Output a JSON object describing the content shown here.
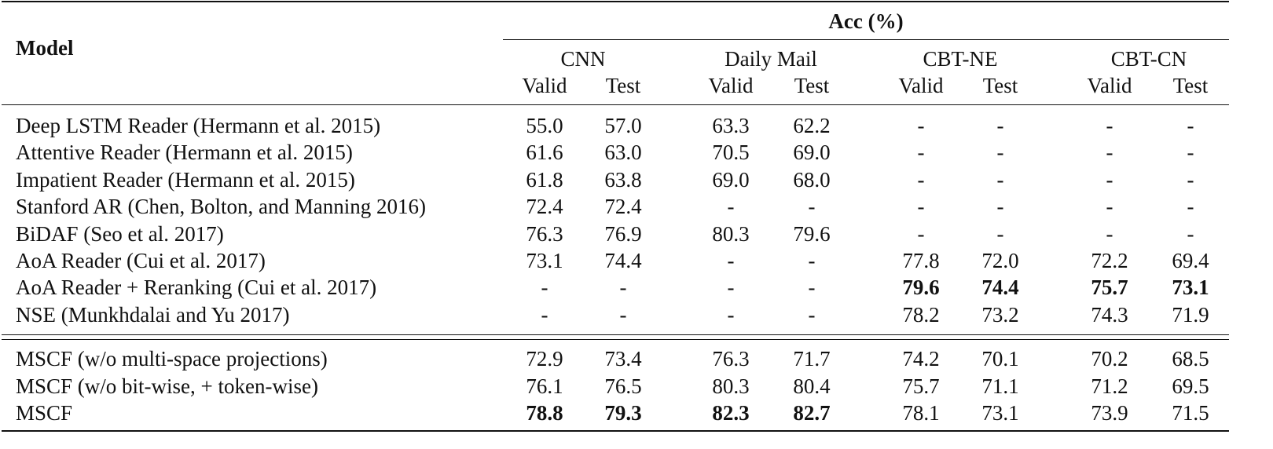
{
  "header": {
    "model": "Model",
    "acc": "Acc (%)",
    "groups": [
      "CNN",
      "Daily Mail",
      "CBT-NE",
      "CBT-CN"
    ],
    "subheaders": [
      "Valid",
      "Test",
      "Valid",
      "Test",
      "Valid",
      "Test",
      "Valid",
      "Test"
    ]
  },
  "table": {
    "rows": [
      [
        "Deep LSTM Reader (Hermann et al. 2015)",
        "55.0",
        "57.0",
        "63.3",
        "62.2",
        "-",
        "-",
        "-",
        "-"
      ],
      [
        "Attentive Reader (Hermann et al. 2015)",
        "61.6",
        "63.0",
        "70.5",
        "69.0",
        "-",
        "-",
        "-",
        "-"
      ],
      [
        "Impatient Reader (Hermann et al. 2015)",
        "61.8",
        "63.8",
        "69.0",
        "68.0",
        "-",
        "-",
        "-",
        "-"
      ],
      [
        "Stanford AR (Chen, Bolton, and Manning 2016)",
        "72.4",
        "72.4",
        "-",
        "-",
        "-",
        "-",
        "-",
        "-"
      ],
      [
        "BiDAF (Seo et al. 2017)",
        "76.3",
        "76.9",
        "80.3",
        "79.6",
        "-",
        "-",
        "-",
        "-"
      ],
      [
        "AoA Reader (Cui et al. 2017)",
        "73.1",
        "74.4",
        "-",
        "-",
        "77.8",
        "72.0",
        "72.2",
        "69.4"
      ],
      [
        "AoA Reader + Reranking (Cui et al. 2017)",
        "-",
        "-",
        "-",
        "-",
        "79.6",
        "74.4",
        "75.7",
        "73.1"
      ],
      [
        "NSE (Munkhdalai and Yu 2017)",
        "-",
        "-",
        "-",
        "-",
        "78.2",
        "73.2",
        "74.3",
        "71.9"
      ],
      [
        "MSCF (w/o multi-space projections)",
        "72.9",
        "73.4",
        "76.3",
        "71.7",
        "74.2",
        "70.1",
        "70.2",
        "68.5"
      ],
      [
        "MSCF (w/o bit-wise, + token-wise)",
        "76.1",
        "76.5",
        "80.3",
        "80.4",
        "75.7",
        "71.1",
        "71.2",
        "69.5"
      ],
      [
        "MSCF",
        "78.8",
        "79.3",
        "82.3",
        "82.7",
        "78.1",
        "73.1",
        "73.9",
        "71.5"
      ]
    ]
  }
}
